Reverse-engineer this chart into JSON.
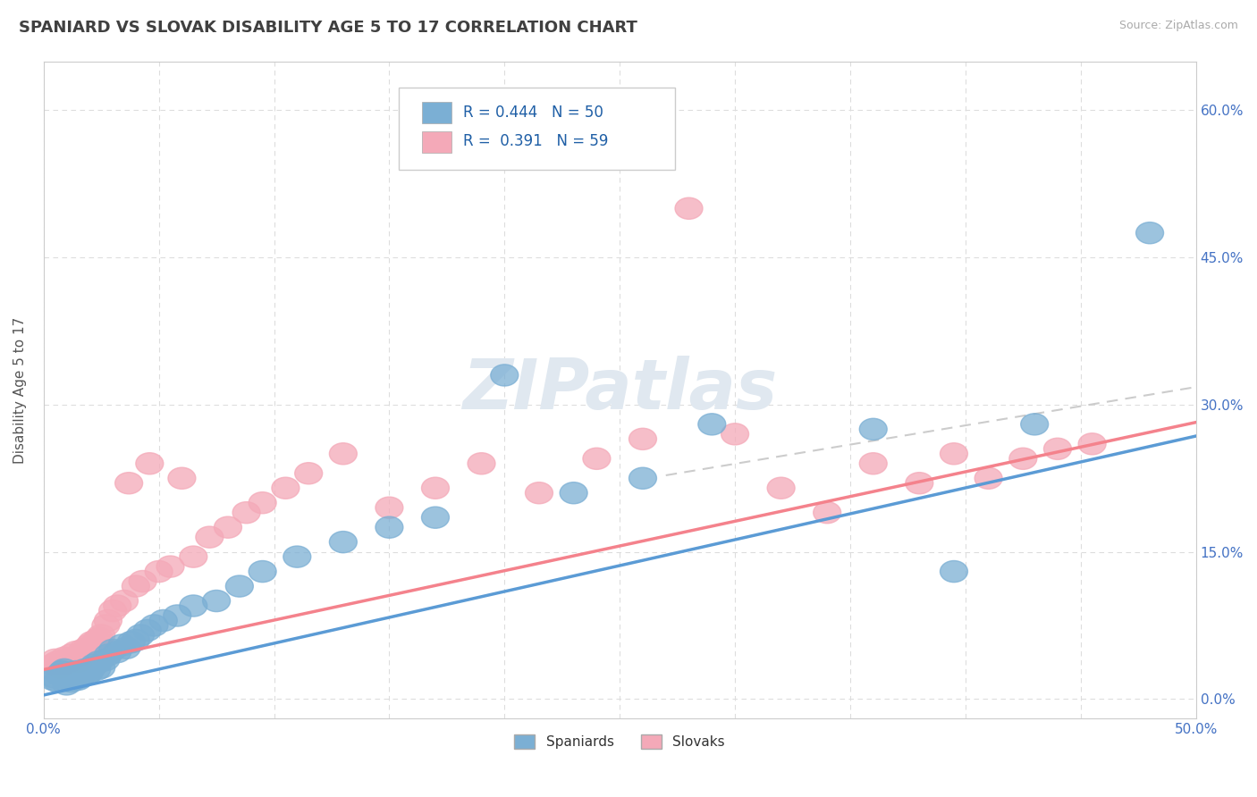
{
  "title": "SPANIARD VS SLOVAK DISABILITY AGE 5 TO 17 CORRELATION CHART",
  "source_text": "Source: ZipAtlas.com",
  "ylabel": "Disability Age 5 to 17",
  "xlim": [
    0.0,
    0.5
  ],
  "ylim": [
    -0.02,
    0.65
  ],
  "plot_ylim": [
    0.0,
    0.65
  ],
  "x_ticks": [
    0.0,
    0.05,
    0.1,
    0.15,
    0.2,
    0.25,
    0.3,
    0.35,
    0.4,
    0.45,
    0.5
  ],
  "y_ticks": [
    0.0,
    0.15,
    0.3,
    0.45,
    0.6
  ],
  "y_tick_labels_right": [
    "0.0%",
    "15.0%",
    "30.0%",
    "45.0%",
    "60.0%"
  ],
  "grid_color": "#dddddd",
  "background_color": "#ffffff",
  "spaniard_color": "#7bafd4",
  "slovak_color": "#f4a9b8",
  "spaniard_line_color": "#5b9bd5",
  "slovak_line_color": "#f4828c",
  "trend_line_dash_color": "#cccccc",
  "r_spaniard": 0.444,
  "n_spaniard": 50,
  "r_slovak": 0.391,
  "n_slovak": 59,
  "spaniard_line": [
    0.0,
    0.004,
    0.5,
    0.268
  ],
  "slovak_line": [
    0.0,
    0.03,
    0.5,
    0.282
  ],
  "dash_line": [
    0.27,
    0.228,
    0.5,
    0.318
  ],
  "spaniard_x": [
    0.004,
    0.005,
    0.006,
    0.007,
    0.008,
    0.009,
    0.01,
    0.011,
    0.012,
    0.013,
    0.014,
    0.015,
    0.016,
    0.018,
    0.019,
    0.02,
    0.021,
    0.022,
    0.023,
    0.024,
    0.025,
    0.027,
    0.028,
    0.03,
    0.032,
    0.034,
    0.036,
    0.038,
    0.04,
    0.042,
    0.045,
    0.048,
    0.052,
    0.058,
    0.065,
    0.075,
    0.085,
    0.095,
    0.11,
    0.13,
    0.15,
    0.17,
    0.2,
    0.23,
    0.26,
    0.29,
    0.36,
    0.395,
    0.43,
    0.48
  ],
  "spaniard_y": [
    0.02,
    0.022,
    0.018,
    0.025,
    0.028,
    0.03,
    0.015,
    0.022,
    0.018,
    0.025,
    0.028,
    0.02,
    0.022,
    0.03,
    0.025,
    0.028,
    0.032,
    0.035,
    0.03,
    0.038,
    0.032,
    0.04,
    0.045,
    0.05,
    0.048,
    0.055,
    0.052,
    0.058,
    0.06,
    0.065,
    0.07,
    0.075,
    0.08,
    0.085,
    0.095,
    0.1,
    0.115,
    0.13,
    0.145,
    0.16,
    0.175,
    0.185,
    0.33,
    0.21,
    0.225,
    0.28,
    0.275,
    0.13,
    0.28,
    0.475
  ],
  "slovak_x": [
    0.004,
    0.005,
    0.006,
    0.007,
    0.008,
    0.009,
    0.01,
    0.011,
    0.012,
    0.013,
    0.014,
    0.015,
    0.016,
    0.017,
    0.018,
    0.019,
    0.02,
    0.021,
    0.022,
    0.023,
    0.024,
    0.025,
    0.027,
    0.028,
    0.03,
    0.032,
    0.035,
    0.037,
    0.04,
    0.043,
    0.046,
    0.05,
    0.055,
    0.06,
    0.065,
    0.072,
    0.08,
    0.088,
    0.095,
    0.105,
    0.115,
    0.13,
    0.15,
    0.17,
    0.19,
    0.215,
    0.24,
    0.26,
    0.28,
    0.3,
    0.32,
    0.34,
    0.36,
    0.38,
    0.395,
    0.41,
    0.425,
    0.44,
    0.455
  ],
  "slovak_y": [
    0.035,
    0.04,
    0.038,
    0.032,
    0.035,
    0.042,
    0.04,
    0.038,
    0.045,
    0.042,
    0.048,
    0.038,
    0.045,
    0.05,
    0.048,
    0.052,
    0.055,
    0.058,
    0.052,
    0.06,
    0.062,
    0.065,
    0.075,
    0.08,
    0.09,
    0.095,
    0.1,
    0.22,
    0.115,
    0.12,
    0.24,
    0.13,
    0.135,
    0.225,
    0.145,
    0.165,
    0.175,
    0.19,
    0.2,
    0.215,
    0.23,
    0.25,
    0.195,
    0.215,
    0.24,
    0.21,
    0.245,
    0.265,
    0.5,
    0.27,
    0.215,
    0.19,
    0.24,
    0.22,
    0.25,
    0.225,
    0.245,
    0.255,
    0.26
  ],
  "watermark_text": "ZIPatlas",
  "legend_color": "#1f5fa6"
}
